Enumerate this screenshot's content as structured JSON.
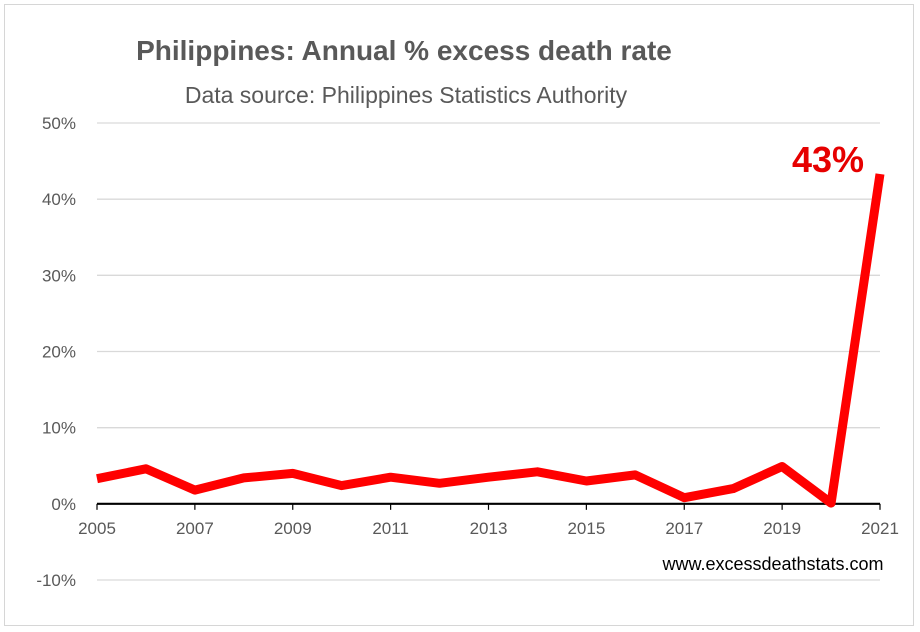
{
  "chart_data": {
    "type": "line",
    "title": "Philippines: Annual % excess death rate",
    "subtitle": "Data source: Philippines Statistics Authority",
    "x": [
      2005,
      2006,
      2007,
      2008,
      2009,
      2010,
      2011,
      2012,
      2013,
      2014,
      2015,
      2016,
      2017,
      2018,
      2019,
      2020,
      2021
    ],
    "x_tick_labels": [
      "2005",
      "2007",
      "2009",
      "2011",
      "2013",
      "2015",
      "2017",
      "2019",
      "2021"
    ],
    "y_tick_labels": [
      "-10%",
      "0%",
      "10%",
      "20%",
      "30%",
      "40%",
      "50%"
    ],
    "y_ticks": [
      -10,
      0,
      10,
      20,
      30,
      40,
      50
    ],
    "ylim": [
      -10,
      50
    ],
    "xlim": [
      2005,
      2021
    ],
    "series": [
      {
        "values": [
          3.3,
          4.6,
          1.8,
          3.4,
          4.0,
          2.4,
          3.5,
          2.7,
          3.5,
          4.2,
          3.0,
          3.8,
          0.8,
          2.0,
          4.9,
          0.1,
          43.3
        ]
      }
    ],
    "annotation": "43%",
    "grid": true,
    "legend": "none",
    "colors": {
      "line": "#ff0000",
      "annotation": "#e60000",
      "grid": "#d9d9d9",
      "zero_axis": "#000000"
    }
  },
  "footer": {
    "source_url": "www.excessdeathstats.com"
  }
}
